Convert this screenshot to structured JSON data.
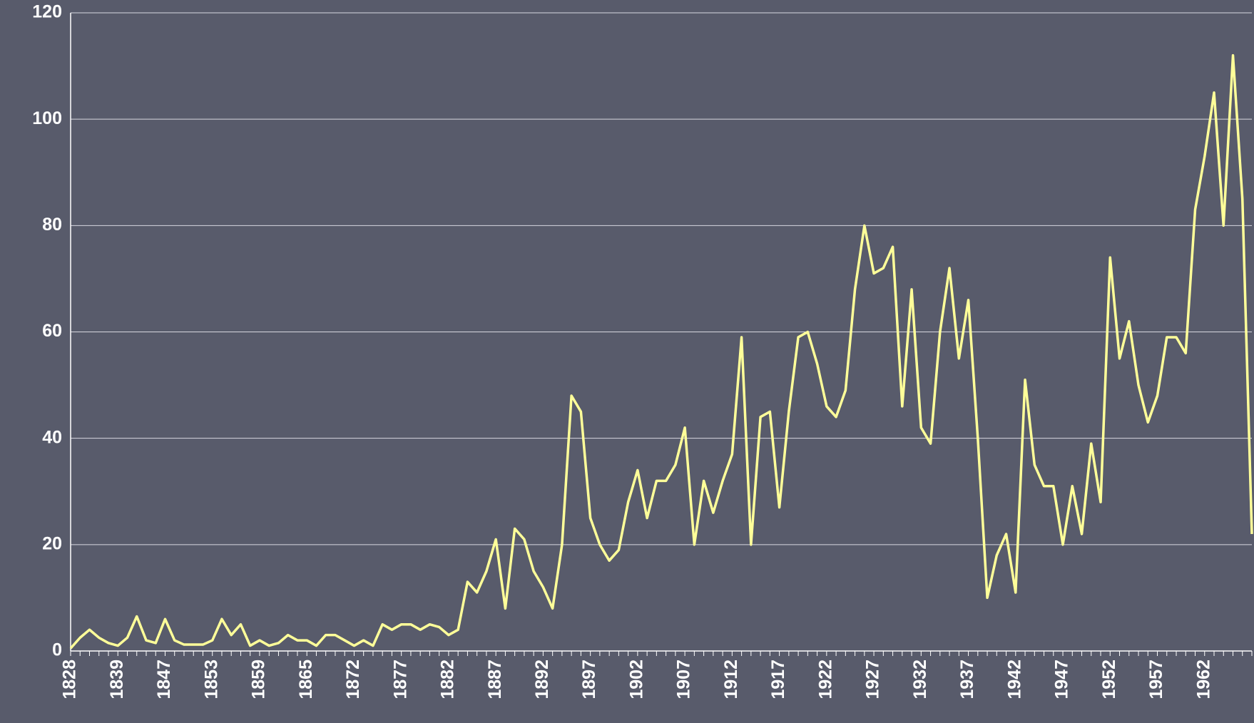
{
  "chart_data": {
    "type": "line",
    "categories": [
      "1828",
      null,
      null,
      null,
      null,
      "1839",
      null,
      null,
      null,
      null,
      "1847",
      null,
      null,
      null,
      null,
      "1853",
      null,
      null,
      null,
      null,
      "1859",
      null,
      null,
      null,
      null,
      "1865",
      null,
      null,
      null,
      null,
      "1872",
      null,
      null,
      null,
      null,
      "1877",
      null,
      null,
      null,
      null,
      "1882",
      null,
      null,
      null,
      null,
      "1887",
      null,
      null,
      null,
      null,
      "1892",
      null,
      null,
      null,
      null,
      "1897",
      null,
      null,
      null,
      null,
      "1902",
      null,
      null,
      null,
      null,
      "1907",
      null,
      null,
      null,
      null,
      "1912",
      null,
      null,
      null,
      null,
      "1917",
      null,
      null,
      null,
      null,
      "1922",
      null,
      null,
      null,
      null,
      "1927",
      null,
      null,
      null,
      null,
      "1932",
      null,
      null,
      null,
      null,
      "1937",
      null,
      null,
      null,
      null,
      "1942",
      null,
      null,
      null,
      null,
      "1947",
      null,
      null,
      null,
      null,
      "1952",
      null,
      null,
      null,
      null,
      "1957",
      null,
      null,
      null,
      null,
      "1962",
      null,
      null,
      null,
      null,
      null
    ],
    "values": [
      0.5,
      2.5,
      4,
      2.5,
      1.5,
      1,
      2.5,
      6.5,
      2,
      1.5,
      6,
      2,
      1.2,
      1.2,
      1.2,
      2,
      6,
      3,
      5,
      1,
      2,
      1,
      1.5,
      3,
      2,
      2,
      1,
      3,
      3,
      2,
      1,
      2,
      1,
      5,
      4,
      5,
      5,
      4,
      5,
      4.5,
      3,
      4,
      13,
      11,
      15,
      21,
      8,
      23,
      21,
      15,
      12,
      8,
      20,
      48,
      45,
      25,
      20,
      17,
      19,
      28,
      34,
      25,
      32,
      32,
      35,
      42,
      20,
      32,
      26,
      32,
      37,
      59,
      20,
      44,
      45,
      27,
      45,
      59,
      60,
      54,
      46,
      44,
      49,
      68,
      80,
      71,
      72,
      76,
      46,
      68,
      42,
      39,
      60,
      72,
      55,
      66,
      40,
      10,
      18,
      22,
      11,
      51,
      35,
      31,
      31,
      20,
      31,
      22,
      39,
      28,
      74,
      55,
      62,
      50,
      43,
      48,
      59,
      59,
      56,
      83,
      93,
      105,
      80,
      112,
      85,
      22
    ],
    "color": "#ffff99",
    "ylim": [
      0,
      120
    ],
    "yticks": [
      0,
      20,
      40,
      60,
      80,
      100,
      120
    ],
    "grid": true
  }
}
